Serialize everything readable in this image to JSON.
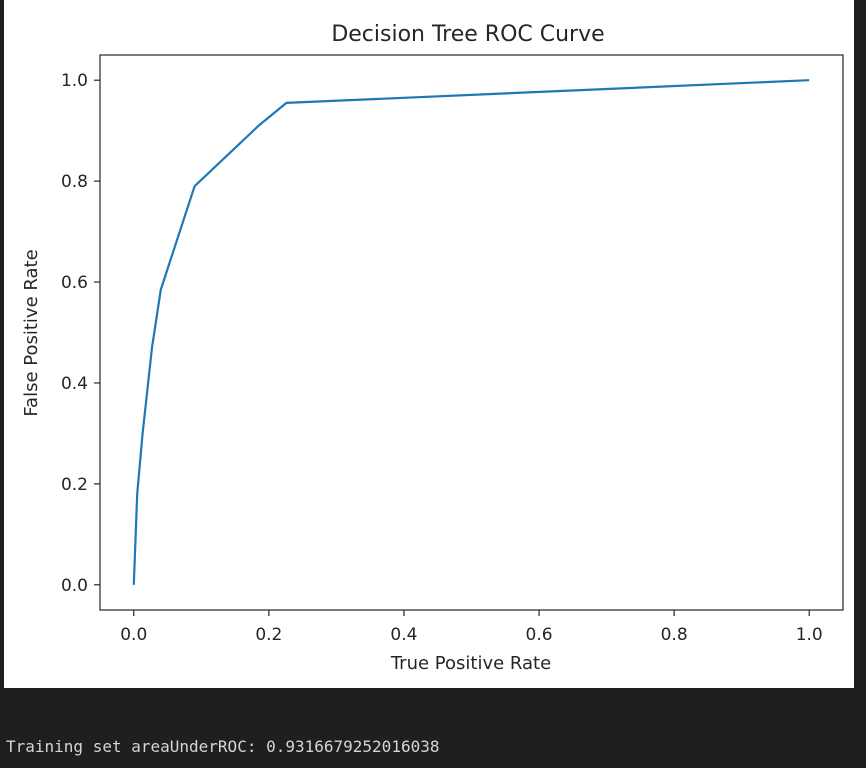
{
  "chart_data": {
    "type": "line",
    "title": "Decision Tree ROC Curve",
    "xlabel": "True Positive Rate",
    "ylabel": "False Positive Rate",
    "xlim": [
      -0.05,
      1.05
    ],
    "ylim": [
      -0.05,
      1.05
    ],
    "xticks": [
      "0.0",
      "0.2",
      "0.4",
      "0.6",
      "0.8",
      "1.0"
    ],
    "yticks": [
      "0.0",
      "0.2",
      "0.4",
      "0.6",
      "0.8",
      "1.0"
    ],
    "grid": false,
    "line_color": "#1f77b4",
    "series": [
      {
        "x": [
          0.0,
          0.005,
          0.013,
          0.027,
          0.04,
          0.09,
          0.185,
          0.226,
          1.0
        ],
        "y": [
          0.0,
          0.18,
          0.3,
          0.47,
          0.585,
          0.79,
          0.91,
          0.955,
          1.0
        ]
      }
    ]
  },
  "console": {
    "output": "Training set areaUnderROC: 0.9316679252016038"
  }
}
